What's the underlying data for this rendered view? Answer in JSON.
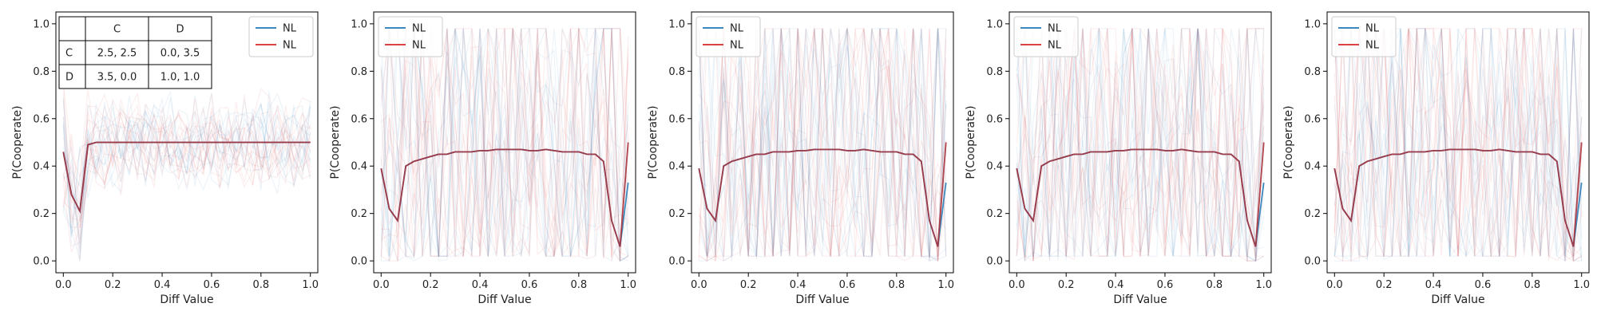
{
  "colors": {
    "nl_blue": "#1f77b4",
    "nl_red": "#d62728",
    "mean_overlap": "#8b3a4a"
  },
  "chart_data": [
    {
      "type": "line",
      "xlabel": "Diff Value",
      "ylabel": "P(Cooperate)",
      "xlim": [
        -0.03,
        1.03
      ],
      "ylim": [
        -0.05,
        1.05
      ],
      "xticks": [
        "0.0",
        "0.2",
        "0.4",
        "0.6",
        "0.8",
        "1.0"
      ],
      "yticks": [
        "0.0",
        "0.2",
        "0.4",
        "0.6",
        "0.8",
        "1.0"
      ],
      "legend": {
        "position": "top-right",
        "entries": [
          "NL",
          "NL"
        ]
      },
      "payoff_table": {
        "col_headers": [
          "",
          "C",
          "D"
        ],
        "rows": [
          [
            "C",
            "2.5, 2.5",
            "0.0, 3.5"
          ],
          [
            "D",
            "3.5, 0.0",
            "1.0, 1.0"
          ]
        ]
      },
      "x": [
        0.0,
        0.033,
        0.067,
        0.1,
        0.133,
        0.167,
        0.2,
        0.233,
        0.267,
        0.3,
        0.333,
        0.367,
        0.4,
        0.433,
        0.467,
        0.5,
        0.533,
        0.567,
        0.6,
        0.633,
        0.667,
        0.7,
        0.733,
        0.767,
        0.8,
        0.833,
        0.867,
        0.9,
        0.933,
        0.967,
        1.0
      ],
      "series": [
        {
          "name": "NL",
          "color": "#1f77b4",
          "values": [
            0.46,
            0.28,
            0.21,
            0.49,
            0.5,
            0.5,
            0.5,
            0.5,
            0.5,
            0.5,
            0.5,
            0.5,
            0.5,
            0.5,
            0.5,
            0.5,
            0.5,
            0.5,
            0.5,
            0.5,
            0.5,
            0.5,
            0.5,
            0.5,
            0.5,
            0.5,
            0.5,
            0.5,
            0.5,
            0.5,
            0.5
          ]
        },
        {
          "name": "NL",
          "color": "#d62728",
          "values": [
            0.46,
            0.28,
            0.21,
            0.49,
            0.5,
            0.5,
            0.5,
            0.5,
            0.5,
            0.5,
            0.5,
            0.5,
            0.5,
            0.5,
            0.5,
            0.5,
            0.5,
            0.5,
            0.5,
            0.5,
            0.5,
            0.5,
            0.5,
            0.5,
            0.5,
            0.5,
            0.5,
            0.5,
            0.5,
            0.5,
            0.5
          ]
        }
      ]
    },
    {
      "type": "line",
      "xlabel": "Diff Value",
      "ylabel": "P(Cooperate)",
      "xlim": [
        -0.03,
        1.03
      ],
      "ylim": [
        -0.05,
        1.05
      ],
      "xticks": [
        "0.0",
        "0.2",
        "0.4",
        "0.6",
        "0.8",
        "1.0"
      ],
      "yticks": [
        "0.0",
        "0.2",
        "0.4",
        "0.6",
        "0.8",
        "1.0"
      ],
      "legend": {
        "position": "top-left",
        "entries": [
          "NL",
          "NL"
        ]
      },
      "x": [
        0.0,
        0.033,
        0.067,
        0.1,
        0.133,
        0.167,
        0.2,
        0.233,
        0.267,
        0.3,
        0.333,
        0.367,
        0.4,
        0.433,
        0.467,
        0.5,
        0.533,
        0.567,
        0.6,
        0.633,
        0.667,
        0.7,
        0.733,
        0.767,
        0.8,
        0.833,
        0.867,
        0.9,
        0.933,
        0.967,
        1.0
      ],
      "series": [
        {
          "name": "NL",
          "color": "#1f77b4",
          "values": [
            0.39,
            0.22,
            0.17,
            0.4,
            0.42,
            0.43,
            0.44,
            0.45,
            0.45,
            0.46,
            0.46,
            0.46,
            0.465,
            0.465,
            0.47,
            0.47,
            0.47,
            0.47,
            0.465,
            0.465,
            0.47,
            0.465,
            0.46,
            0.46,
            0.46,
            0.45,
            0.45,
            0.42,
            0.17,
            0.06,
            0.33
          ]
        },
        {
          "name": "NL",
          "color": "#d62728",
          "values": [
            0.39,
            0.22,
            0.17,
            0.4,
            0.42,
            0.43,
            0.44,
            0.45,
            0.45,
            0.46,
            0.46,
            0.46,
            0.465,
            0.465,
            0.47,
            0.47,
            0.47,
            0.47,
            0.465,
            0.465,
            0.47,
            0.465,
            0.46,
            0.46,
            0.46,
            0.45,
            0.45,
            0.42,
            0.17,
            0.06,
            0.5
          ]
        }
      ]
    },
    {
      "type": "line",
      "xlabel": "Diff Value",
      "ylabel": "P(Cooperate)",
      "xlim": [
        -0.03,
        1.03
      ],
      "ylim": [
        -0.05,
        1.05
      ],
      "xticks": [
        "0.0",
        "0.2",
        "0.4",
        "0.6",
        "0.8",
        "1.0"
      ],
      "yticks": [
        "0.0",
        "0.2",
        "0.4",
        "0.6",
        "0.8",
        "1.0"
      ],
      "legend": {
        "position": "top-left",
        "entries": [
          "NL",
          "NL"
        ]
      },
      "x": [
        0.0,
        0.033,
        0.067,
        0.1,
        0.133,
        0.167,
        0.2,
        0.233,
        0.267,
        0.3,
        0.333,
        0.367,
        0.4,
        0.433,
        0.467,
        0.5,
        0.533,
        0.567,
        0.6,
        0.633,
        0.667,
        0.7,
        0.733,
        0.767,
        0.8,
        0.833,
        0.867,
        0.9,
        0.933,
        0.967,
        1.0
      ],
      "series": [
        {
          "name": "NL",
          "color": "#1f77b4",
          "values": [
            0.39,
            0.22,
            0.17,
            0.4,
            0.42,
            0.43,
            0.44,
            0.45,
            0.45,
            0.46,
            0.46,
            0.46,
            0.465,
            0.465,
            0.47,
            0.47,
            0.47,
            0.47,
            0.465,
            0.465,
            0.47,
            0.465,
            0.46,
            0.46,
            0.46,
            0.45,
            0.45,
            0.42,
            0.17,
            0.06,
            0.33
          ]
        },
        {
          "name": "NL",
          "color": "#d62728",
          "values": [
            0.39,
            0.22,
            0.17,
            0.4,
            0.42,
            0.43,
            0.44,
            0.45,
            0.45,
            0.46,
            0.46,
            0.46,
            0.465,
            0.465,
            0.47,
            0.47,
            0.47,
            0.47,
            0.465,
            0.465,
            0.47,
            0.465,
            0.46,
            0.46,
            0.46,
            0.45,
            0.45,
            0.42,
            0.17,
            0.06,
            0.5
          ]
        }
      ]
    },
    {
      "type": "line",
      "xlabel": "Diff Value",
      "ylabel": "P(Cooperate)",
      "xlim": [
        -0.03,
        1.03
      ],
      "ylim": [
        -0.05,
        1.05
      ],
      "xticks": [
        "0.0",
        "0.2",
        "0.4",
        "0.6",
        "0.8",
        "1.0"
      ],
      "yticks": [
        "0.0",
        "0.2",
        "0.4",
        "0.6",
        "0.8",
        "1.0"
      ],
      "legend": {
        "position": "top-left",
        "entries": [
          "NL",
          "NL"
        ]
      },
      "x": [
        0.0,
        0.033,
        0.067,
        0.1,
        0.133,
        0.167,
        0.2,
        0.233,
        0.267,
        0.3,
        0.333,
        0.367,
        0.4,
        0.433,
        0.467,
        0.5,
        0.533,
        0.567,
        0.6,
        0.633,
        0.667,
        0.7,
        0.733,
        0.767,
        0.8,
        0.833,
        0.867,
        0.9,
        0.933,
        0.967,
        1.0
      ],
      "series": [
        {
          "name": "NL",
          "color": "#1f77b4",
          "values": [
            0.39,
            0.22,
            0.17,
            0.4,
            0.42,
            0.43,
            0.44,
            0.45,
            0.45,
            0.46,
            0.46,
            0.46,
            0.465,
            0.465,
            0.47,
            0.47,
            0.47,
            0.47,
            0.465,
            0.465,
            0.47,
            0.465,
            0.46,
            0.46,
            0.46,
            0.45,
            0.45,
            0.42,
            0.17,
            0.06,
            0.33
          ]
        },
        {
          "name": "NL",
          "color": "#d62728",
          "values": [
            0.39,
            0.22,
            0.17,
            0.4,
            0.42,
            0.43,
            0.44,
            0.45,
            0.45,
            0.46,
            0.46,
            0.46,
            0.465,
            0.465,
            0.47,
            0.47,
            0.47,
            0.47,
            0.465,
            0.465,
            0.47,
            0.465,
            0.46,
            0.46,
            0.46,
            0.45,
            0.45,
            0.42,
            0.17,
            0.06,
            0.5
          ]
        }
      ]
    },
    {
      "type": "line",
      "xlabel": "Diff Value",
      "ylabel": "P(Cooperate)",
      "xlim": [
        -0.03,
        1.03
      ],
      "ylim": [
        -0.05,
        1.05
      ],
      "xticks": [
        "0.0",
        "0.2",
        "0.4",
        "0.6",
        "0.8",
        "1.0"
      ],
      "yticks": [
        "0.0",
        "0.2",
        "0.4",
        "0.6",
        "0.8",
        "1.0"
      ],
      "legend": {
        "position": "top-left",
        "entries": [
          "NL",
          "NL"
        ]
      },
      "x": [
        0.0,
        0.033,
        0.067,
        0.1,
        0.133,
        0.167,
        0.2,
        0.233,
        0.267,
        0.3,
        0.333,
        0.367,
        0.4,
        0.433,
        0.467,
        0.5,
        0.533,
        0.567,
        0.6,
        0.633,
        0.667,
        0.7,
        0.733,
        0.767,
        0.8,
        0.833,
        0.867,
        0.9,
        0.933,
        0.967,
        1.0
      ],
      "series": [
        {
          "name": "NL",
          "color": "#1f77b4",
          "values": [
            0.39,
            0.22,
            0.17,
            0.4,
            0.42,
            0.43,
            0.44,
            0.45,
            0.45,
            0.46,
            0.46,
            0.46,
            0.465,
            0.465,
            0.47,
            0.47,
            0.47,
            0.47,
            0.465,
            0.465,
            0.47,
            0.465,
            0.46,
            0.46,
            0.46,
            0.45,
            0.45,
            0.42,
            0.17,
            0.06,
            0.33
          ]
        },
        {
          "name": "NL",
          "color": "#d62728",
          "values": [
            0.39,
            0.22,
            0.17,
            0.4,
            0.42,
            0.43,
            0.44,
            0.45,
            0.45,
            0.46,
            0.46,
            0.46,
            0.465,
            0.465,
            0.47,
            0.47,
            0.47,
            0.47,
            0.465,
            0.465,
            0.47,
            0.465,
            0.46,
            0.46,
            0.46,
            0.45,
            0.45,
            0.42,
            0.17,
            0.06,
            0.5
          ]
        }
      ]
    }
  ]
}
